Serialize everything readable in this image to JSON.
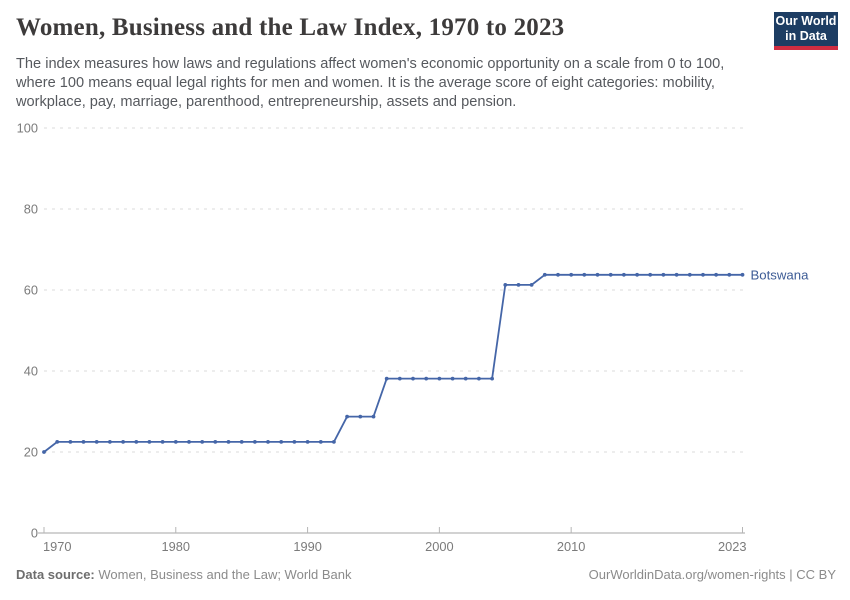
{
  "header": {
    "title": "Women, Business and the Law Index, 1970 to 2023",
    "subtitle": "The index measures how laws and regulations affect women's economic opportunity on a scale from 0 to 100, where 100 means equal legal rights for men and women. It is the average score of eight categories: mobility, workplace, pay, marriage, parenthood, entrepreneurship, assets and pension.",
    "logo": {
      "line1": "Our World",
      "line2": "in Data"
    }
  },
  "footer": {
    "datasource_label": "Data source:",
    "datasource_text": " Women, Business and the Law; World Bank",
    "rights_text": "OurWorldinData.org/women-rights | CC BY"
  },
  "colors": {
    "line": "#4566a8",
    "series_label": "#3d5c96",
    "gridline": "#dbdbdb",
    "axis": "#a5a5a5",
    "tick": "#b5b5b5",
    "logo_bg": "#1d3d63",
    "logo_stripe": "#cf2d41"
  },
  "chart_data": {
    "type": "line",
    "title": "Women, Business and the Law Index, 1970 to 2023",
    "xlabel": "",
    "ylabel": "",
    "xlim": [
      1970,
      2023
    ],
    "ylim": [
      0,
      100
    ],
    "x_ticks": [
      1970,
      1980,
      1990,
      2000,
      2010,
      2023
    ],
    "y_ticks": [
      0,
      20,
      40,
      60,
      80,
      100
    ],
    "grid": "horizontal-dashed",
    "legend_position": "end-of-line-label",
    "series": [
      {
        "name": "Botswana",
        "points": [
          [
            1970,
            20
          ],
          [
            1971,
            22.5
          ],
          [
            1972,
            22.5
          ],
          [
            1973,
            22.5
          ],
          [
            1974,
            22.5
          ],
          [
            1975,
            22.5
          ],
          [
            1976,
            22.5
          ],
          [
            1977,
            22.5
          ],
          [
            1978,
            22.5
          ],
          [
            1979,
            22.5
          ],
          [
            1980,
            22.5
          ],
          [
            1981,
            22.5
          ],
          [
            1982,
            22.5
          ],
          [
            1983,
            22.5
          ],
          [
            1984,
            22.5
          ],
          [
            1985,
            22.5
          ],
          [
            1986,
            22.5
          ],
          [
            1987,
            22.5
          ],
          [
            1988,
            22.5
          ],
          [
            1989,
            22.5
          ],
          [
            1990,
            22.5
          ],
          [
            1991,
            22.5
          ],
          [
            1992,
            22.5
          ],
          [
            1993,
            28.75
          ],
          [
            1994,
            28.75
          ],
          [
            1995,
            28.75
          ],
          [
            1996,
            38.125
          ],
          [
            1997,
            38.125
          ],
          [
            1998,
            38.125
          ],
          [
            1999,
            38.125
          ],
          [
            2000,
            38.125
          ],
          [
            2001,
            38.125
          ],
          [
            2002,
            38.125
          ],
          [
            2003,
            38.125
          ],
          [
            2004,
            38.125
          ],
          [
            2005,
            61.25
          ],
          [
            2006,
            61.25
          ],
          [
            2007,
            61.25
          ],
          [
            2008,
            63.75
          ],
          [
            2009,
            63.75
          ],
          [
            2010,
            63.75
          ],
          [
            2011,
            63.75
          ],
          [
            2012,
            63.75
          ],
          [
            2013,
            63.75
          ],
          [
            2014,
            63.75
          ],
          [
            2015,
            63.75
          ],
          [
            2016,
            63.75
          ],
          [
            2017,
            63.75
          ],
          [
            2018,
            63.75
          ],
          [
            2019,
            63.75
          ],
          [
            2020,
            63.75
          ],
          [
            2021,
            63.75
          ],
          [
            2022,
            63.75
          ],
          [
            2023,
            63.75
          ]
        ]
      }
    ]
  }
}
